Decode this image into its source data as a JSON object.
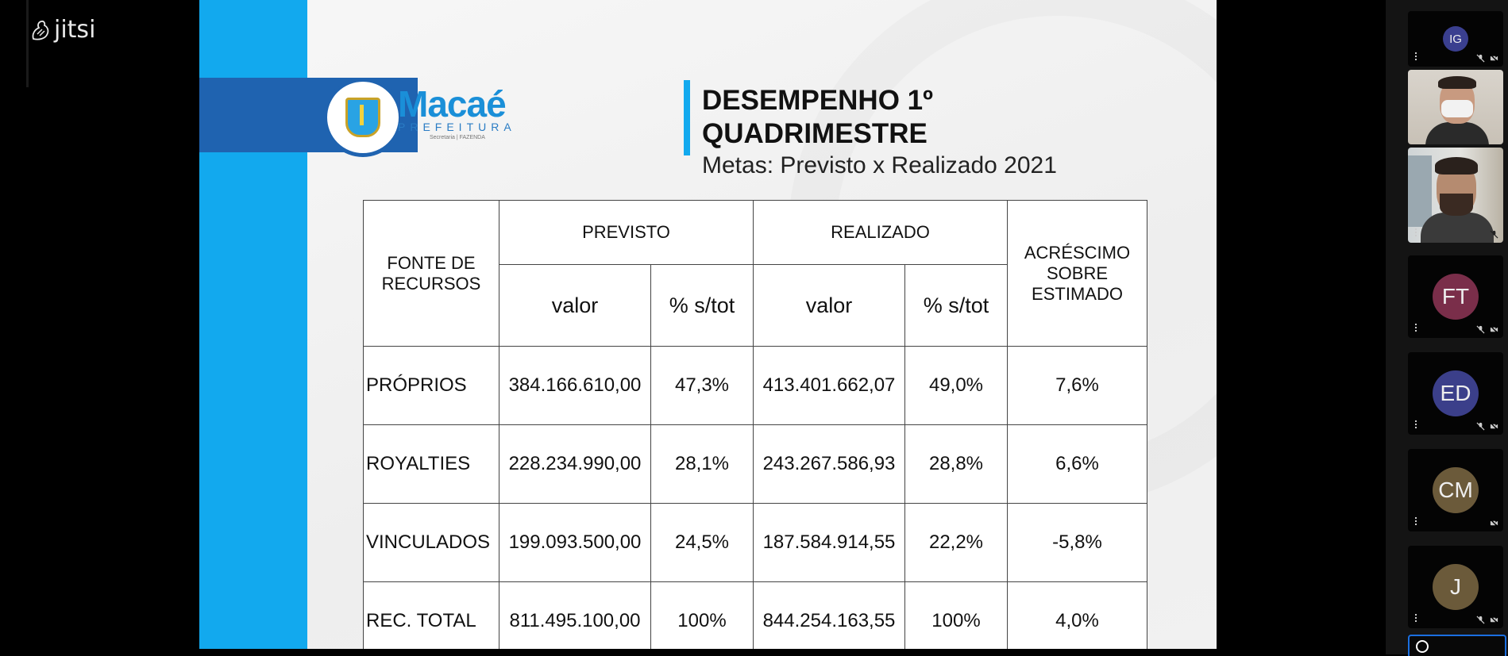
{
  "app": {
    "logo_text": "jitsi"
  },
  "slide": {
    "logo": {
      "name": "Macaé",
      "subtitle": "PREFEITURA",
      "tiny": "Secretaria | FAZENDA"
    },
    "title_line1": "DESEMPENHO 1º",
    "title_line2": "QUADRIMESTRE",
    "subtitle": "Metas: Previsto x Realizado 2021",
    "table": {
      "headers": {
        "source": "FONTE DE RECURSOS",
        "previsto": "PREVISTO",
        "realizado": "REALIZADO",
        "acrescimo": "ACRÉSCIMO SOBRE ESTIMADO",
        "valor": "valor",
        "pct": "% s/tot"
      },
      "rows": [
        {
          "source": "PRÓPRIOS",
          "prev_valor": "384.166.610,00",
          "prev_pct": "47,3%",
          "real_valor": "413.401.662,07",
          "real_pct": "49,0%",
          "acrescimo": "7,6%"
        },
        {
          "source": "ROYALTIES",
          "prev_valor": "228.234.990,00",
          "prev_pct": "28,1%",
          "real_valor": "243.267.586,93",
          "real_pct": "28,8%",
          "acrescimo": "6,6%"
        },
        {
          "source": "VINCULADOS",
          "prev_valor": "199.093.500,00",
          "prev_pct": "24,5%",
          "real_valor": "187.584.914,55",
          "real_pct": "22,2%",
          "acrescimo": "-5,8%"
        },
        {
          "source": "REC. TOTAL",
          "prev_valor": "811.495.100,00",
          "prev_pct": "100%",
          "real_valor": "844.254.163,55",
          "real_pct": "100%",
          "acrescimo": "4,0%"
        }
      ]
    }
  },
  "participants": [
    {
      "initials": "IG",
      "color": "#3a3f8f",
      "type": "avatar"
    },
    {
      "initials": "",
      "type": "video-masked"
    },
    {
      "initials": "",
      "type": "video"
    },
    {
      "initials": "FT",
      "color": "#7a2e4a",
      "type": "avatar"
    },
    {
      "initials": "ED",
      "color": "#3b3f8a",
      "type": "avatar"
    },
    {
      "initials": "CM",
      "color": "#6b5a3a",
      "type": "avatar"
    },
    {
      "initials": "J",
      "color": "#6b5a3a",
      "type": "avatar"
    }
  ]
}
